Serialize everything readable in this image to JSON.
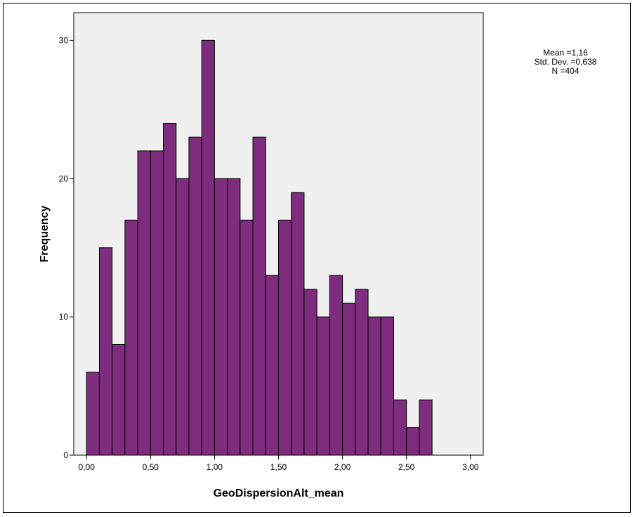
{
  "chart_data": {
    "type": "bar",
    "variant": "histogram",
    "xlabel": "GeoDispersionAlt_mean",
    "ylabel": "Frequency",
    "x_ticks": [
      "0,00",
      "0,50",
      "1,00",
      "1,50",
      "2,00",
      "2,50",
      "3,00"
    ],
    "x_tick_values": [
      0,
      0.5,
      1.0,
      1.5,
      2.0,
      2.5,
      3.0
    ],
    "y_ticks": [
      "0",
      "10",
      "20",
      "30"
    ],
    "y_tick_values": [
      0,
      10,
      20,
      30
    ],
    "xlim": [
      -0.1,
      3.1
    ],
    "ylim": [
      0,
      32
    ],
    "bin_width": 0.1,
    "bin_start": 0.0,
    "values": [
      6,
      15,
      8,
      17,
      22,
      22,
      24,
      20,
      23,
      30,
      20,
      20,
      17,
      23,
      13,
      17,
      19,
      12,
      10,
      13,
      11,
      12,
      10,
      10,
      4,
      2,
      4
    ],
    "bar_color": "#7e2c7e",
    "plot_background": "#f0f0f0",
    "grid": false,
    "legend": null
  },
  "stats": {
    "mean": "Mean =1,16",
    "std": "Std. Dev. =0,638",
    "n": "N =404"
  }
}
